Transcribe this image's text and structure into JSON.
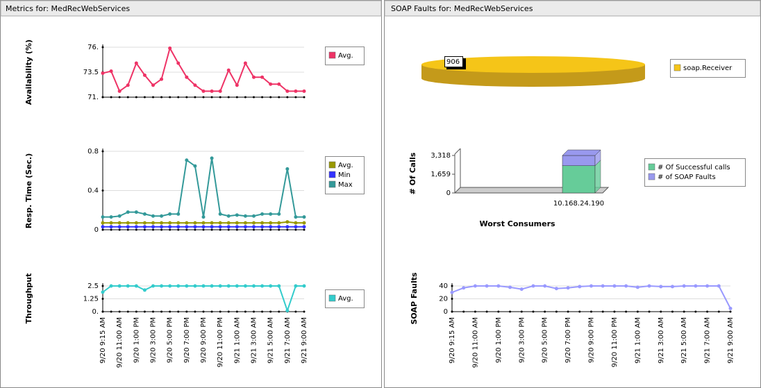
{
  "panels": [
    {
      "title": "Metrics for: MedRecWebServices"
    },
    {
      "title": "SOAP Faults for: MedRecWebServices"
    }
  ],
  "chart_data": [
    {
      "type": "line",
      "ylabel": "Availability (%)",
      "ylim": [
        71,
        76
      ],
      "yticks": [
        {
          "value": 71,
          "label": "71."
        },
        73.5,
        {
          "value": 76,
          "label": "76."
        }
      ],
      "series": [
        {
          "name": "Avg.",
          "color": "#ee3366",
          "values": [
            73.4,
            73.6,
            71.6,
            72.2,
            74.4,
            73.2,
            72.2,
            72.8,
            75.9,
            74.4,
            73,
            72.2,
            71.6,
            71.6,
            71.6,
            73.7,
            72.2,
            74.4,
            73,
            73,
            72.3,
            72.3,
            71.6,
            71.6,
            71.6
          ]
        }
      ]
    },
    {
      "type": "line",
      "ylabel": "Resp. Time (Sec.)",
      "ylim": [
        0,
        0.8
      ],
      "yticks": [
        0,
        0.4,
        0.8
      ],
      "series": [
        {
          "name": "Avg.",
          "color": "#999900",
          "values": [
            0.07,
            0.07,
            0.07,
            0.07,
            0.07,
            0.07,
            0.07,
            0.07,
            0.07,
            0.07,
            0.07,
            0.07,
            0.07,
            0.07,
            0.07,
            0.07,
            0.07,
            0.07,
            0.07,
            0.07,
            0.07,
            0.07,
            0.08,
            0.07,
            0.07
          ]
        },
        {
          "name": "Min",
          "color": "#3333ff",
          "values": [
            0.03,
            0.03,
            0.03,
            0.03,
            0.03,
            0.03,
            0.03,
            0.03,
            0.03,
            0.03,
            0.03,
            0.03,
            0.03,
            0.03,
            0.03,
            0.03,
            0.03,
            0.03,
            0.03,
            0.03,
            0.03,
            0.03,
            0.03,
            0.03,
            0.03
          ]
        },
        {
          "name": "Max",
          "color": "#339999",
          "values": [
            0.13,
            0.13,
            0.14,
            0.18,
            0.18,
            0.16,
            0.14,
            0.14,
            0.16,
            0.16,
            0.71,
            0.65,
            0.13,
            0.73,
            0.16,
            0.14,
            0.15,
            0.14,
            0.14,
            0.16,
            0.16,
            0.16,
            0.62,
            0.13,
            0.13
          ]
        }
      ]
    },
    {
      "type": "line",
      "ylabel": "Throughput",
      "ylim": [
        0,
        2.5
      ],
      "yticks": [
        {
          "value": 0,
          "label": "0."
        },
        1.25,
        2.5
      ],
      "categories": [
        "9/20 9:15 AM",
        null,
        "9/20 11:00 AM",
        null,
        "9/20 1:00 PM",
        null,
        "9/20 3:00 PM",
        null,
        "9/20 5:00 PM",
        null,
        "9/20 7:00 PM",
        null,
        "9/20 9:00 PM",
        null,
        "9/20 11:00 PM",
        null,
        "9/21 1:00 AM",
        null,
        "9/21 3:00 AM",
        null,
        "9/21 5:00 AM",
        null,
        "9/21 7:00 AM",
        null,
        "9/21 9:00 AM"
      ],
      "series": [
        {
          "name": "Avg.",
          "color": "#33cccc",
          "values": [
            1.9,
            2.5,
            2.5,
            2.5,
            2.5,
            2.1,
            2.5,
            2.5,
            2.5,
            2.5,
            2.5,
            2.5,
            2.5,
            2.5,
            2.5,
            2.5,
            2.5,
            2.5,
            2.5,
            2.5,
            2.5,
            2.5,
            0.1,
            2.5,
            2.5
          ]
        }
      ]
    },
    {
      "type": "pie",
      "categories": [
        "soap.Receiver"
      ],
      "values": [
        906
      ],
      "colors": [
        "#f5c518"
      ]
    },
    {
      "type": "bar",
      "ylabel": "# Of Calls",
      "xlabel": "Worst Consumers",
      "ylim": [
        0,
        3318
      ],
      "yticks": [
        0,
        {
          "value": 1659,
          "label": "1,659"
        },
        {
          "value": 3318,
          "label": "3,318"
        }
      ],
      "categories": [
        "10.168.24.190"
      ],
      "series": [
        {
          "name": "# Of Successful calls",
          "color": "#66cc99",
          "values": [
            2412
          ]
        },
        {
          "name": "# of SOAP Faults",
          "color": "#9999ee",
          "values": [
            906
          ]
        }
      ]
    },
    {
      "type": "line",
      "ylabel": "SOAP Faults",
      "ylim": [
        0,
        40
      ],
      "yticks": [
        0,
        20,
        40
      ],
      "color": "#9999ff",
      "categories": [
        "9/20 9:15 AM",
        null,
        "9/20 11:00 AM",
        null,
        "9/20 1:00 PM",
        null,
        "9/20 3:00 PM",
        null,
        "9/20 5:00 PM",
        null,
        "9/20 7:00 PM",
        null,
        "9/20 9:00 PM",
        null,
        "9/20 11:00 PM",
        null,
        "9/21 1:00 AM",
        null,
        "9/21 3:00 AM",
        null,
        "9/21 5:00 AM",
        null,
        "9/21 7:00 AM",
        null,
        "9/21 9:00 AM"
      ],
      "values": [
        30,
        37,
        40,
        40,
        40,
        38,
        35,
        40,
        40,
        36,
        37,
        39,
        40,
        40,
        40,
        40,
        38,
        40,
        39,
        39,
        40,
        40,
        40,
        40,
        5
      ]
    }
  ]
}
